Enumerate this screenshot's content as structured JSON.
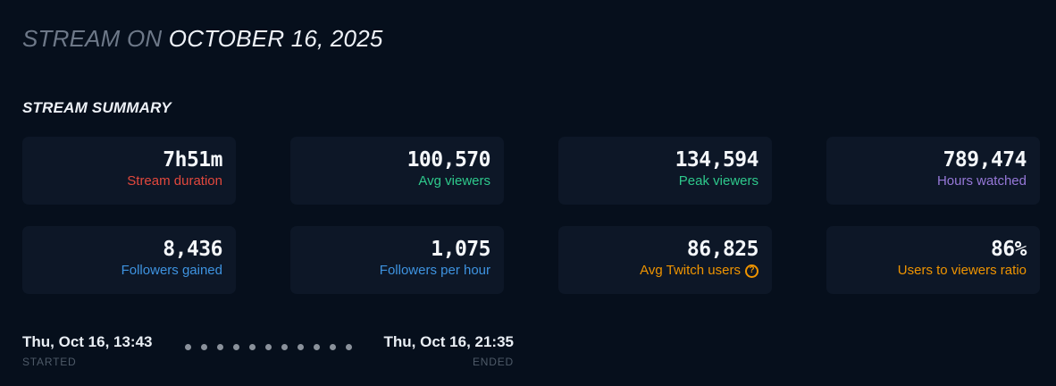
{
  "header": {
    "title_prefix": "STREAM ON ",
    "title_date": "OCTOBER 16, 2025"
  },
  "summary": {
    "heading": "STREAM SUMMARY",
    "cards": [
      {
        "value": "7h51m",
        "label": "Stream duration",
        "label_color": "#e2483d",
        "has_help": false
      },
      {
        "value": "100,570",
        "label": "Avg viewers",
        "label_color": "#2ec98c",
        "has_help": false
      },
      {
        "value": "134,594",
        "label": "Peak viewers",
        "label_color": "#2ec98c",
        "has_help": false
      },
      {
        "value": "789,474",
        "label": "Hours watched",
        "label_color": "#9678d8",
        "has_help": false
      },
      {
        "value": "8,436",
        "label": "Followers gained",
        "label_color": "#3e93e0",
        "has_help": false
      },
      {
        "value": "1,075",
        "label": "Followers per hour",
        "label_color": "#3e93e0",
        "has_help": false
      },
      {
        "value": "86,825",
        "label": "Avg Twitch users",
        "label_color": "#ef9400",
        "has_help": true
      },
      {
        "value": "86%",
        "label": "Users to viewers ratio",
        "label_color": "#ef9400",
        "has_help": false
      }
    ]
  },
  "icons": {
    "help_glyph": "?"
  },
  "timeline": {
    "started_time": "Thu, Oct 16, 13:43",
    "started_label": "STARTED",
    "ended_time": "Thu, Oct 16, 21:35",
    "ended_label": "ENDED",
    "dot_count": 11
  },
  "colors": {
    "page_bg": "#060f1c",
    "card_bg": "#0d1727",
    "value_text": "#f4f7fa",
    "muted_text": "#4e5a68",
    "title_prefix": "#6d7888",
    "dots": "#8a919b",
    "accent_red": "#e2483d",
    "accent_green": "#2ec98c",
    "accent_purple": "#9678d8",
    "accent_blue": "#3e93e0",
    "accent_orange": "#ef9400"
  }
}
